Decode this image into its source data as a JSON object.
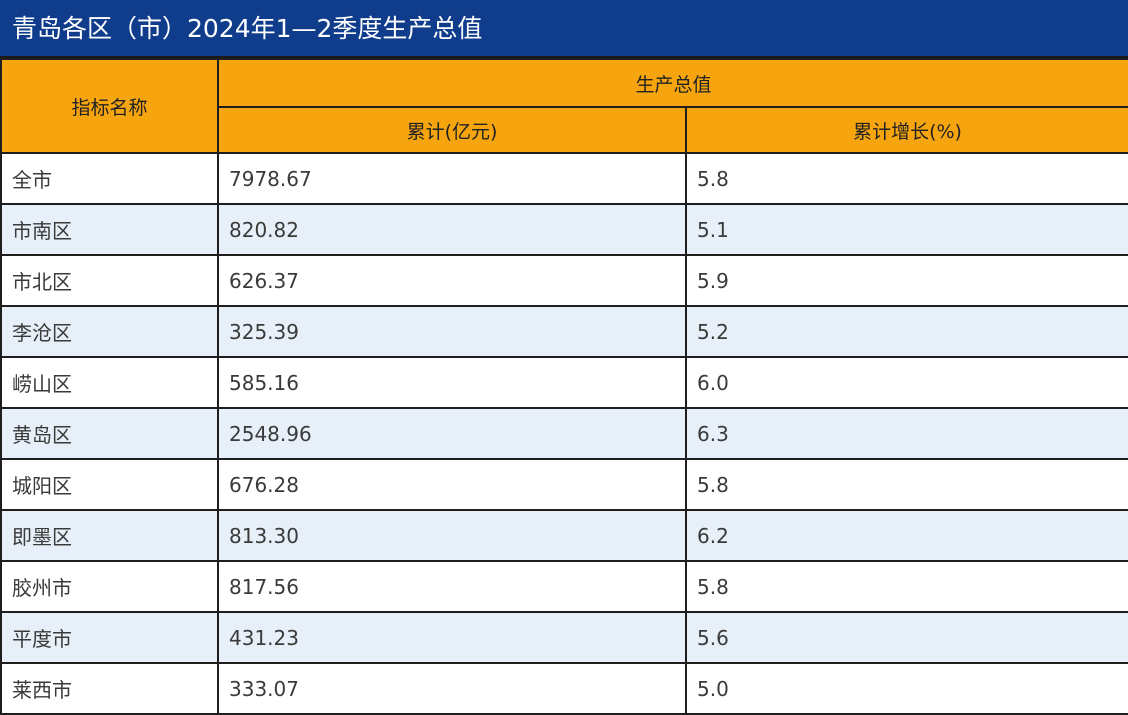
{
  "title": "青岛各区（市）2024年1—2季度生产总值",
  "colors": {
    "title_bg": "#0f3d8c",
    "header_bg": "#f6a50f",
    "row_alt_bg": "#e7f0f8"
  },
  "header": {
    "indicator": "指标名称",
    "group": "生产总值",
    "cumulative": "累计(亿元)",
    "growth": "累计增长(%)"
  },
  "rows": [
    {
      "name": "全市",
      "value": "7978.67",
      "growth": "5.8"
    },
    {
      "name": "市南区",
      "value": "820.82",
      "growth": "5.1"
    },
    {
      "name": "市北区",
      "value": "626.37",
      "growth": "5.9"
    },
    {
      "name": "李沧区",
      "value": "325.39",
      "growth": "5.2"
    },
    {
      "name": "崂山区",
      "value": "585.16",
      "growth": "6.0"
    },
    {
      "name": "黄岛区",
      "value": "2548.96",
      "growth": "6.3"
    },
    {
      "name": "城阳区",
      "value": "676.28",
      "growth": "5.8"
    },
    {
      "name": "即墨区",
      "value": "813.30",
      "growth": "6.2"
    },
    {
      "name": "胶州市",
      "value": "817.56",
      "growth": "5.8"
    },
    {
      "name": "平度市",
      "value": "431.23",
      "growth": "5.6"
    },
    {
      "name": "莱西市",
      "value": "333.07",
      "growth": "5.0"
    }
  ]
}
